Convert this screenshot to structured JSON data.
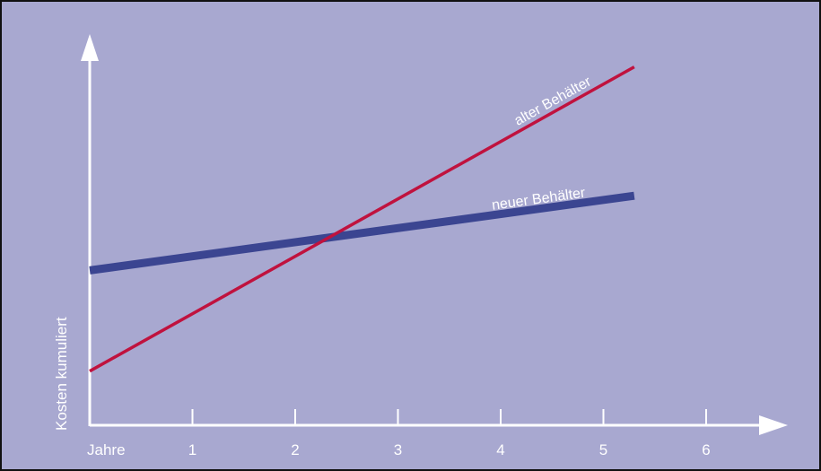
{
  "chart_data": {
    "type": "line",
    "title": "",
    "xlabel": "Jahre",
    "ylabel": "Kosten kumuliert",
    "x_ticks": [
      1,
      2,
      3,
      4,
      5,
      6
    ],
    "xlim": [
      0,
      6.8
    ],
    "ylim": [
      0,
      100
    ],
    "grid": false,
    "legend": "inline labels at line ends",
    "series": [
      {
        "name": "neuer Behälter",
        "color": "#3b4591",
        "x": [
          0,
          5.3
        ],
        "y": [
          41.5,
          61.5
        ]
      },
      {
        "name": "alter Behälter",
        "color": "#c0123e",
        "x": [
          0,
          5.3
        ],
        "y": [
          14.5,
          96.0
        ]
      }
    ],
    "colors": {
      "background": "#a8a8d0",
      "axes": "#ffffff"
    }
  }
}
